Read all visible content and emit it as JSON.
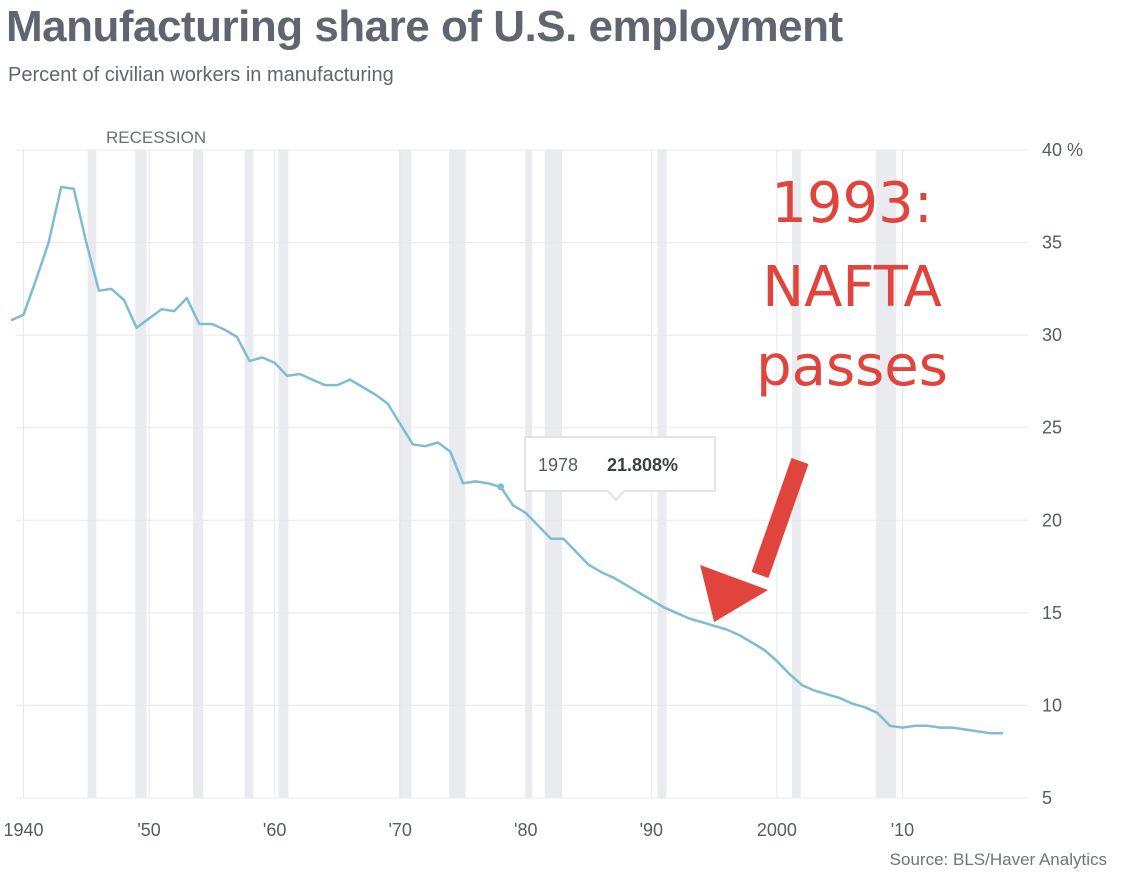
{
  "chart_data": {
    "type": "line",
    "title": "Manufacturing share of U.S. employment",
    "subtitle": "Percent of civilian workers in manufacturing",
    "source": "Source: BLS/Haver Analytics",
    "ylim": [
      5,
      40
    ],
    "xlim": [
      1939,
      2018
    ],
    "y_ticks": [
      {
        "value": 40,
        "label": "40 %"
      },
      {
        "value": 35,
        "label": "35"
      },
      {
        "value": 30,
        "label": "30"
      },
      {
        "value": 25,
        "label": "25"
      },
      {
        "value": 20,
        "label": "20"
      },
      {
        "value": 15,
        "label": "15"
      },
      {
        "value": 10,
        "label": "10"
      },
      {
        "value": 5,
        "label": "5"
      }
    ],
    "x_ticks": [
      {
        "value": 1940,
        "label": "1940"
      },
      {
        "value": 1950,
        "label": "'50"
      },
      {
        "value": 1960,
        "label": "'60"
      },
      {
        "value": 1970,
        "label": "'70"
      },
      {
        "value": 1980,
        "label": "'80"
      },
      {
        "value": 1990,
        "label": "'90"
      },
      {
        "value": 2000,
        "label": "2000"
      },
      {
        "value": 2010,
        "label": "'10"
      }
    ],
    "grid": true,
    "recession_label": "RECESSION",
    "recessions": [
      [
        1945.1,
        1945.8
      ],
      [
        1948.9,
        1949.8
      ],
      [
        1953.5,
        1954.3
      ],
      [
        1957.6,
        1958.3
      ],
      [
        1960.3,
        1961.1
      ],
      [
        1969.9,
        1970.9
      ],
      [
        1973.9,
        1975.2
      ],
      [
        1980.0,
        1980.5
      ],
      [
        1981.5,
        1982.9
      ],
      [
        1990.5,
        1991.2
      ],
      [
        2001.2,
        2001.9
      ],
      [
        2007.9,
        2009.5
      ]
    ],
    "line_color": "#7fbcd3",
    "series": [
      {
        "x": [
          1939,
          1940,
          1941,
          1942,
          1943,
          1944,
          1945,
          1946,
          1947,
          1948,
          1949,
          1950,
          1951,
          1952,
          1953,
          1954,
          1955,
          1956,
          1957,
          1958,
          1959,
          1960,
          1961,
          1962,
          1963,
          1964,
          1965,
          1966,
          1967,
          1968,
          1969,
          1970,
          1971,
          1972,
          1973,
          1974,
          1975,
          1976,
          1977,
          1978,
          1979,
          1980,
          1981,
          1982,
          1983,
          1984,
          1985,
          1986,
          1987,
          1988,
          1989,
          1990,
          1991,
          1992,
          1993,
          1994,
          1995,
          1996,
          1997,
          1998,
          1999,
          2000,
          2001,
          2002,
          2003,
          2004,
          2005,
          2006,
          2007,
          2008,
          2009,
          2010,
          2011,
          2012,
          2013,
          2014,
          2015,
          2016,
          2017,
          2018
        ],
        "values": [
          30.8,
          31.1,
          33.0,
          35.0,
          38.0,
          37.9,
          35.0,
          32.4,
          32.5,
          31.9,
          30.4,
          30.9,
          31.4,
          31.3,
          32.0,
          30.6,
          30.6,
          30.3,
          29.9,
          28.6,
          28.8,
          28.5,
          27.8,
          27.9,
          27.6,
          27.3,
          27.3,
          27.6,
          27.2,
          26.8,
          26.3,
          25.2,
          24.1,
          24.0,
          24.2,
          23.7,
          22.0,
          22.1,
          22.0,
          21.8,
          20.8,
          20.4,
          19.7,
          19.0,
          19.0,
          18.3,
          17.6,
          17.2,
          16.9,
          16.5,
          16.1,
          15.7,
          15.3,
          15.0,
          14.7,
          14.5,
          14.3,
          14.1,
          13.8,
          13.4,
          13.0,
          12.4,
          11.7,
          11.1,
          10.8,
          10.6,
          10.4,
          10.1,
          9.9,
          9.6,
          8.9,
          8.8,
          8.9,
          8.9,
          8.8,
          8.8,
          8.7,
          8.6,
          8.5,
          8.5
        ]
      }
    ],
    "tooltip": {
      "year": 1978,
      "year_label": "1978",
      "value_label": "21.808%"
    },
    "annotation": {
      "lines": [
        "1993:",
        "NAFTA",
        "passes"
      ],
      "color": "#e0443c",
      "arrow_target_year": 1995
    }
  }
}
